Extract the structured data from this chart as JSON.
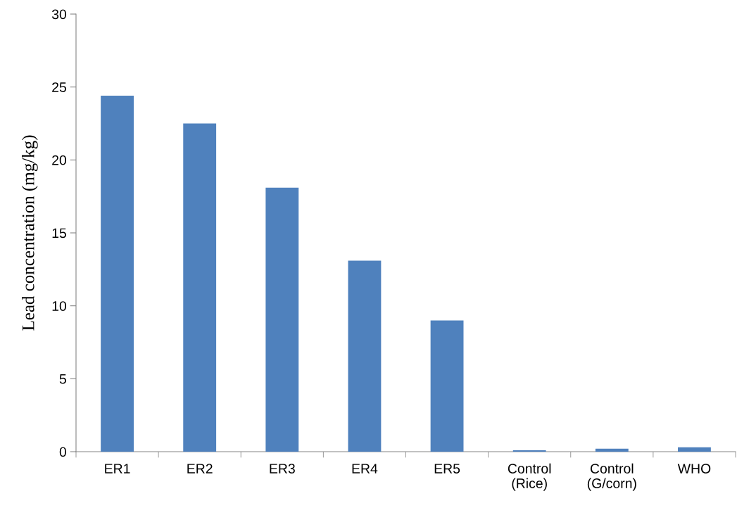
{
  "chart_data": {
    "type": "bar",
    "ylabel": "Lead concentration (mg/kg)",
    "categories": [
      "ER1",
      "ER2",
      "ER3",
      "ER4",
      "ER5",
      "Control\n(Rice)",
      "Control\n(G/corn)",
      "WHO"
    ],
    "values": [
      24.4,
      22.5,
      18.1,
      13.1,
      9.0,
      0.1,
      0.2,
      0.3
    ],
    "color": "#4f81bd",
    "ylim": [
      0,
      30
    ],
    "yticks": [
      0,
      5,
      10,
      15,
      20,
      25,
      30
    ],
    "grid": false,
    "legend": false
  }
}
